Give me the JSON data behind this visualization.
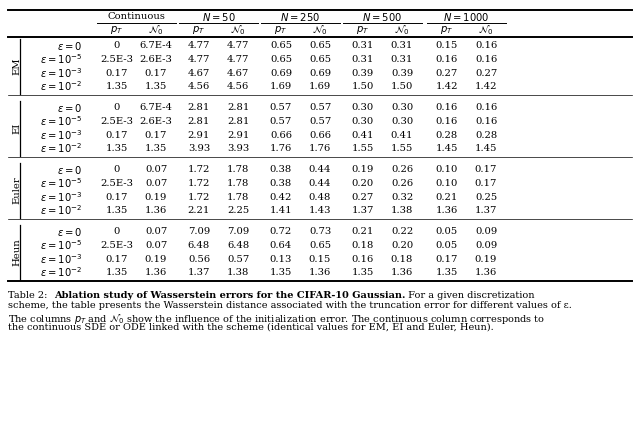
{
  "row_groups": [
    "EM",
    "EI",
    "Euler",
    "Heun"
  ],
  "eps_labels": [
    "$\\varepsilon = 0$",
    "$\\varepsilon = 10^{-5}$",
    "$\\varepsilon = 10^{-3}$",
    "$\\varepsilon = 10^{-2}$"
  ],
  "cont_pT": [
    "0",
    "2.5E-3",
    "0.17",
    "1.35"
  ],
  "data": {
    "EM": [
      [
        "6.7E-4",
        "4.77",
        "4.77",
        "0.65",
        "0.65",
        "0.31",
        "0.31",
        "0.15",
        "0.16"
      ],
      [
        "2.6E-3",
        "4.77",
        "4.77",
        "0.65",
        "0.65",
        "0.31",
        "0.31",
        "0.16",
        "0.16"
      ],
      [
        "0.17",
        "4.67",
        "4.67",
        "0.69",
        "0.69",
        "0.39",
        "0.39",
        "0.27",
        "0.27"
      ],
      [
        "1.35",
        "4.56",
        "4.56",
        "1.69",
        "1.69",
        "1.50",
        "1.50",
        "1.42",
        "1.42"
      ]
    ],
    "EI": [
      [
        "6.7E-4",
        "2.81",
        "2.81",
        "0.57",
        "0.57",
        "0.30",
        "0.30",
        "0.16",
        "0.16"
      ],
      [
        "2.6E-3",
        "2.81",
        "2.81",
        "0.57",
        "0.57",
        "0.30",
        "0.30",
        "0.16",
        "0.16"
      ],
      [
        "0.17",
        "2.91",
        "2.91",
        "0.66",
        "0.66",
        "0.41",
        "0.41",
        "0.28",
        "0.28"
      ],
      [
        "1.35",
        "3.93",
        "3.93",
        "1.76",
        "1.76",
        "1.55",
        "1.55",
        "1.45",
        "1.45"
      ]
    ],
    "Euler": [
      [
        "0.07",
        "1.72",
        "1.78",
        "0.38",
        "0.44",
        "0.19",
        "0.26",
        "0.10",
        "0.17"
      ],
      [
        "0.07",
        "1.72",
        "1.78",
        "0.38",
        "0.44",
        "0.20",
        "0.26",
        "0.10",
        "0.17"
      ],
      [
        "0.19",
        "1.72",
        "1.78",
        "0.42",
        "0.48",
        "0.27",
        "0.32",
        "0.21",
        "0.25"
      ],
      [
        "1.36",
        "2.21",
        "2.25",
        "1.41",
        "1.43",
        "1.37",
        "1.38",
        "1.36",
        "1.37"
      ]
    ],
    "Heun": [
      [
        "0.07",
        "7.09",
        "7.09",
        "0.72",
        "0.73",
        "0.21",
        "0.22",
        "0.05",
        "0.09"
      ],
      [
        "0.07",
        "6.48",
        "6.48",
        "0.64",
        "0.65",
        "0.18",
        "0.20",
        "0.05",
        "0.09"
      ],
      [
        "0.19",
        "0.56",
        "0.57",
        "0.13",
        "0.15",
        "0.16",
        "0.18",
        "0.17",
        "0.19"
      ],
      [
        "1.36",
        "1.37",
        "1.38",
        "1.35",
        "1.36",
        "1.35",
        "1.36",
        "1.35",
        "1.36"
      ]
    ]
  },
  "caption_table": "Table 2:",
  "caption_bold": "Ablation study of Wasserstein errors for the CIFAR-10 Gaussian.",
  "caption_rest_line1": " For a given discretization",
  "caption_line2": "scheme, the table presents the Wasserstein distance associated with the truncation error for different values of ε.",
  "caption_line3": "The columns $p_T$ and $\\mathcal{N}_0$ show the influence of the initialization error. The continuous column corresponds to",
  "caption_line4": "the continuous SDE or ODE linked with the scheme (identical values for EM, EI and Euler, Heun)."
}
